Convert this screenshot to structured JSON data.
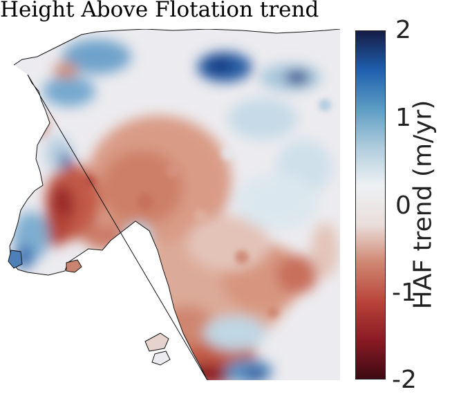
{
  "title": "Height Above Flotation trend",
  "colorbar": {
    "label": "HAF trend (m/yr)",
    "ticks": [
      "2",
      "1",
      "0",
      "-1",
      "-2"
    ],
    "vmin": -2,
    "vmax": 2,
    "stops": [
      "#3d0a12",
      "#8a1a24",
      "#b8443a",
      "#cf8670",
      "#eadedb",
      "#edf1f4",
      "#aeccdc",
      "#5b9cc4",
      "#1f5fae",
      "#151c45"
    ]
  },
  "map": {
    "variable": "HAF trend",
    "units": "m/yr"
  }
}
